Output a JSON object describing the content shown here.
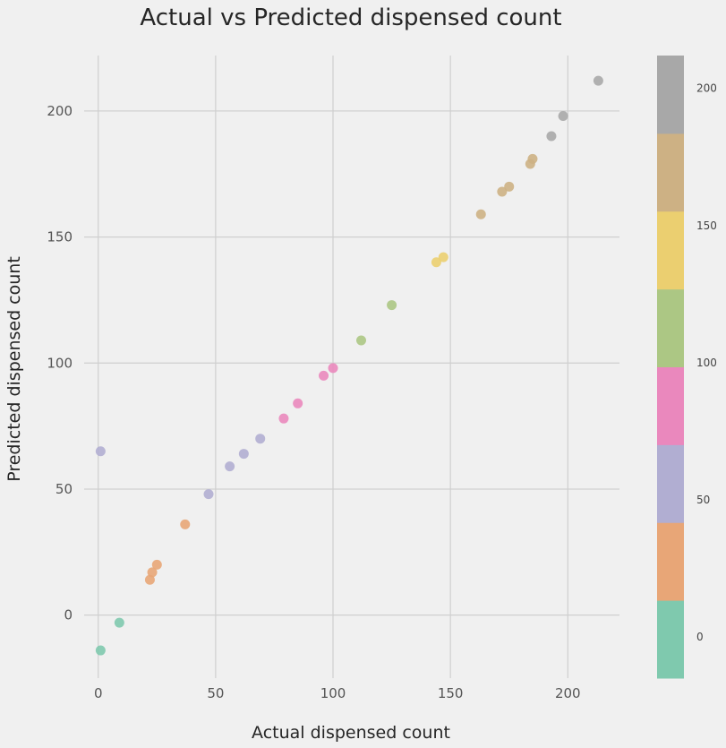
{
  "chart_data": {
    "type": "scatter",
    "title": "Actual vs Predicted dispensed count",
    "xlabel": "Actual dispensed count",
    "ylabel": "Predicted dispensed count",
    "xlim": [
      -6,
      222
    ],
    "ylim": [
      -25,
      222
    ],
    "xticks": [
      0,
      50,
      100,
      150,
      200
    ],
    "yticks": [
      0,
      50,
      100,
      150,
      200
    ],
    "grid": true,
    "points": [
      {
        "x": 1,
        "y": -14
      },
      {
        "x": 9,
        "y": -3
      },
      {
        "x": 22,
        "y": 14
      },
      {
        "x": 23,
        "y": 17
      },
      {
        "x": 25,
        "y": 20
      },
      {
        "x": 37,
        "y": 36
      },
      {
        "x": 1,
        "y": 65
      },
      {
        "x": 47,
        "y": 48
      },
      {
        "x": 56,
        "y": 59
      },
      {
        "x": 62,
        "y": 64
      },
      {
        "x": 69,
        "y": 70
      },
      {
        "x": 79,
        "y": 78
      },
      {
        "x": 85,
        "y": 84
      },
      {
        "x": 96,
        "y": 95
      },
      {
        "x": 100,
        "y": 98
      },
      {
        "x": 112,
        "y": 109
      },
      {
        "x": 125,
        "y": 123
      },
      {
        "x": 144,
        "y": 140
      },
      {
        "x": 147,
        "y": 142
      },
      {
        "x": 163,
        "y": 159
      },
      {
        "x": 172,
        "y": 168
      },
      {
        "x": 175,
        "y": 170
      },
      {
        "x": 184,
        "y": 179
      },
      {
        "x": 185,
        "y": 181
      },
      {
        "x": 193,
        "y": 190
      },
      {
        "x": 198,
        "y": 198
      },
      {
        "x": 213,
        "y": 212
      }
    ],
    "colorbar": {
      "range": [
        -15,
        212
      ],
      "ticks": [
        0,
        50,
        100,
        150,
        200
      ],
      "colors": [
        "#7fc9ae",
        "#e8a677",
        "#b1aed2",
        "#ea88bd",
        "#acc784",
        "#ebcf70",
        "#cdb184",
        "#a8a8a8"
      ]
    }
  }
}
